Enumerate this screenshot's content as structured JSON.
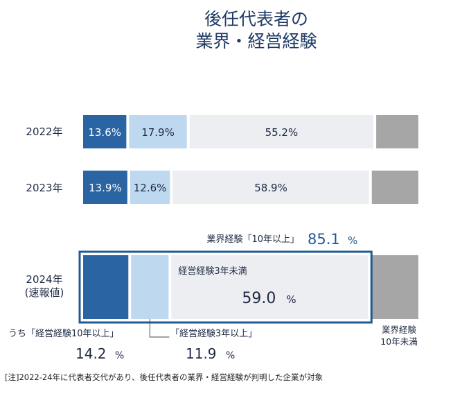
{
  "title_lines": [
    "後任代表者の",
    "業界・経営経験"
  ],
  "note": "[注]2022-24年に代表者交代があり、後任代表者の業界・経営経験が判明した企業が対象",
  "colors": {
    "dark_blue": "#2b64a2",
    "light_blue": "#bed8ef",
    "pale_gray": "#eceef1",
    "gray": "#a6a6a6",
    "frame": "#1f5a95",
    "text": "#1f2a44"
  },
  "chart_data": {
    "type": "bar",
    "orientation": "horizontal",
    "stacked": true,
    "categories": [
      "2022年",
      "2023年",
      "2024年\n(速報値)"
    ],
    "series": [
      {
        "name": "うち「経営経験10年以上」",
        "values": [
          13.6,
          13.9,
          14.2
        ]
      },
      {
        "name": "「経営経験3年以上」",
        "values": [
          17.9,
          12.6,
          11.9
        ]
      },
      {
        "name": "経営経験3年未満",
        "values": [
          55.2,
          58.9,
          59.0
        ]
      },
      {
        "name": "業界経験\n10年未満",
        "values": [
          13.3,
          14.6,
          14.9
        ]
      }
    ],
    "data_labels": [
      [
        "13.6%",
        "17.9%",
        "55.2%",
        ""
      ],
      [
        "13.9%",
        "12.6%",
        "58.9%",
        ""
      ],
      [
        "",
        "",
        "",
        ""
      ]
    ],
    "annotations": {
      "industry_10plus_label": "業界経験「10年以上」",
      "industry_10plus_value": "85.1",
      "mgmt_3under_label": "経営経験3年未満",
      "mgmt_3under_value": "59.0",
      "mgmt_10plus_label": "うち「経営経験10年以上」",
      "mgmt_10plus_value": "14.2",
      "mgmt_3plus_label": "「経営経験3年以上」",
      "mgmt_3plus_value": "11.9",
      "industry_under10_label": "業界経験\n10年未満",
      "percent_sign": "%"
    }
  }
}
